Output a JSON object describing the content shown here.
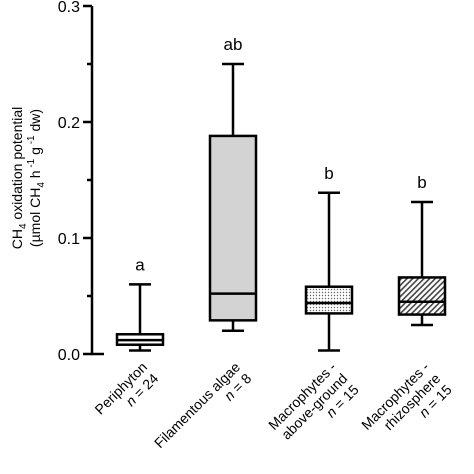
{
  "chart_data": {
    "type": "box",
    "ylim": [
      0,
      0.3
    ],
    "yticks": [
      "0.0",
      "0.1",
      "0.2",
      "0.3"
    ],
    "ytick_values": [
      0.0,
      0.1,
      0.2,
      0.3
    ],
    "ylabel_line1_parts": [
      "CH",
      "4",
      " oxidation potential"
    ],
    "ylabel_line2_parts": [
      "(µmol CH",
      "4",
      " h",
      " -1",
      " g",
      " -1",
      " dw)"
    ],
    "grid": false,
    "legend": "none",
    "boxes": [
      {
        "name": "Periphyton",
        "n_text": "n = 24",
        "n_prefix": "n",
        "n_value": " = 24",
        "significance": "a",
        "whisker_low": 0.003,
        "q1": 0.008,
        "median": 0.012,
        "q3": 0.017,
        "whisker_high": 0.06,
        "fill": "plain",
        "fill_color": "#ffffff",
        "label_lines": [
          "Periphyton"
        ]
      },
      {
        "name": "Filamentous algae",
        "n_text": "n = 8",
        "n_prefix": "n",
        "n_value": " = 8",
        "significance": "ab",
        "whisker_low": 0.02,
        "q1": 0.029,
        "median": 0.052,
        "q3": 0.188,
        "whisker_high": 0.25,
        "fill": "grey",
        "fill_color": "#d3d3d3",
        "label_lines": [
          "Filamentous algae"
        ]
      },
      {
        "name": "Macrophytes - above-ground",
        "n_text": "n = 15",
        "n_prefix": "n",
        "n_value": " = 15",
        "significance": "b",
        "whisker_low": 0.003,
        "q1": 0.035,
        "median": 0.044,
        "q3": 0.058,
        "whisker_high": 0.139,
        "fill": "dots",
        "fill_color": "#ffffff",
        "label_lines": [
          "Macrophytes -",
          "above-ground"
        ]
      },
      {
        "name": "Macrophytes - rhizosphere",
        "n_text": "n = 15",
        "n_prefix": "n",
        "n_value": " = 15",
        "significance": "b",
        "whisker_low": 0.025,
        "q1": 0.034,
        "median": 0.045,
        "q3": 0.066,
        "whisker_high": 0.131,
        "fill": "hatch",
        "fill_color": "#ffffff",
        "label_lines": [
          "Macrophytes -",
          "rhizosphere"
        ]
      }
    ]
  },
  "colors": {
    "stroke": "#000000",
    "grey_fill": "#d3d3d3",
    "pattern": "#555555"
  }
}
